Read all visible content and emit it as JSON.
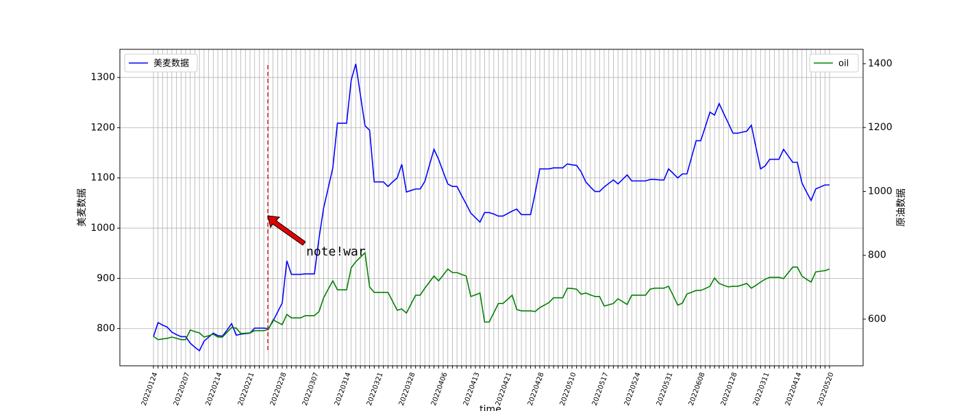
{
  "chart_data": {
    "type": "line",
    "x_label": "time",
    "y_label": "美麦数据",
    "y2_label": "原油数据",
    "annotation": "note!war",
    "categories": [
      "20220124",
      null,
      null,
      null,
      null,
      null,
      null,
      "20220207",
      null,
      null,
      null,
      null,
      null,
      null,
      "20220214",
      null,
      null,
      null,
      null,
      null,
      null,
      "20220221",
      null,
      null,
      null,
      null,
      null,
      null,
      "20220228",
      null,
      null,
      null,
      null,
      null,
      null,
      "20220307",
      null,
      null,
      null,
      null,
      null,
      null,
      "20220314",
      null,
      null,
      null,
      null,
      null,
      null,
      "20220321",
      null,
      null,
      null,
      null,
      null,
      null,
      "20220328",
      null,
      null,
      null,
      null,
      null,
      null,
      "20220406",
      null,
      null,
      null,
      null,
      null,
      null,
      "20220413",
      null,
      null,
      null,
      null,
      null,
      null,
      "20220421",
      null,
      null,
      null,
      null,
      null,
      null,
      "20220428",
      null,
      null,
      null,
      null,
      null,
      null,
      "20220510",
      null,
      null,
      null,
      null,
      null,
      null,
      "20220517",
      null,
      null,
      null,
      null,
      null,
      null,
      "20220524",
      null,
      null,
      null,
      null,
      null,
      null,
      "20220531",
      null,
      null,
      null,
      null,
      null,
      null,
      "20220608",
      null,
      null,
      null,
      null,
      null,
      null,
      "20220128",
      null,
      null,
      null,
      null,
      null,
      null,
      "20220311",
      null,
      null,
      null,
      null,
      null,
      null,
      "20220414",
      null,
      null,
      null,
      null,
      null,
      null,
      "20220520"
    ],
    "series": [
      {
        "name": "美麦数据",
        "color": "#0000ff",
        "axis": "y",
        "legend_loc": "upper left",
        "values": [
          784,
          812,
          807,
          803,
          793,
          788,
          784,
          784,
          771,
          763,
          756,
          775,
          783,
          791,
          786,
          785,
          797,
          810,
          787,
          789,
          790,
          791,
          801,
          801,
          801,
          800,
          815,
          833,
          851,
          935,
          908,
          908,
          908,
          909,
          909,
          909,
          980,
          1040,
          1080,
          1120,
          1209,
          1209,
          1209,
          1295,
          1327,
          1265,
          1204,
          1195,
          1092,
          1092,
          1092,
          1083,
          1092,
          1100,
          1127,
          1072,
          1075,
          1078,
          1078,
          1093,
          1125,
          1157,
          1137,
          1112,
          1088,
          1083,
          1083,
          1065,
          1048,
          1030,
          1021,
          1012,
          1031,
          1031,
          1028,
          1024,
          1024,
          1029,
          1034,
          1038,
          1027,
          1027,
          1027,
          1070,
          1118,
          1118,
          1118,
          1120,
          1120,
          1120,
          1128,
          1126,
          1125,
          1112,
          1092,
          1082,
          1073,
          1073,
          1082,
          1089,
          1096,
          1088,
          1097,
          1106,
          1094,
          1094,
          1094,
          1094,
          1097,
          1097,
          1096,
          1096,
          1118,
          1109,
          1100,
          1108,
          1108,
          1141,
          1174,
          1174,
          1202,
          1231,
          1225,
          1248,
          1228,
          1209,
          1189,
          1189,
          1191,
          1193,
          1205,
          1161,
          1118,
          1124,
          1137,
          1137,
          1137,
          1157,
          1144,
          1131,
          1131,
          1090,
          1072,
          1055,
          1078,
          1082,
          1086,
          1086
        ]
      },
      {
        "name": "oil",
        "color": "#008000",
        "axis": "y2",
        "legend_loc": "upper right",
        "values": [
          546,
          536,
          538,
          540,
          544,
          540,
          536,
          536,
          566,
          561,
          557,
          544,
          548,
          553,
          544,
          544,
          559,
          574,
          572,
          555,
          556,
          557,
          564,
          564,
          564,
          568,
          598,
          590,
          583,
          615,
          604,
          604,
          604,
          611,
          611,
          611,
          624,
          667,
          694,
          720,
          692,
          692,
          692,
          761,
          780,
          794,
          808,
          701,
          684,
          684,
          684,
          684,
          656,
          628,
          632,
          619,
          647,
          675,
          675,
          697,
          716,
          735,
          720,
          738,
          757,
          746,
          746,
          740,
          735,
          671,
          676,
          682,
          591,
          591,
          620,
          649,
          649,
          662,
          675,
          630,
          626,
          626,
          626,
          624,
          636,
          644,
          652,
          667,
          667,
          667,
          697,
          696,
          694,
          678,
          682,
          676,
          671,
          671,
          641,
          645,
          649,
          664,
          655,
          646,
          675,
          675,
          675,
          675,
          694,
          697,
          697,
          697,
          703,
          674,
          644,
          650,
          679,
          684,
          690,
          690,
          696,
          703,
          729,
          712,
          706,
          701,
          703,
          703,
          707,
          712,
          697,
          706,
          716,
          725,
          731,
          731,
          731,
          727,
          745,
          763,
          763,
          735,
          725,
          716,
          748,
          750,
          752,
          757
        ]
      }
    ],
    "ylim": [
      726,
      1356
    ],
    "yticks": [
      800,
      900,
      1000,
      1100,
      1200,
      1300
    ],
    "y2lim": [
      454,
      1445
    ],
    "y2ticks": [
      600,
      800,
      1000,
      1200,
      1400
    ],
    "grid": true
  }
}
